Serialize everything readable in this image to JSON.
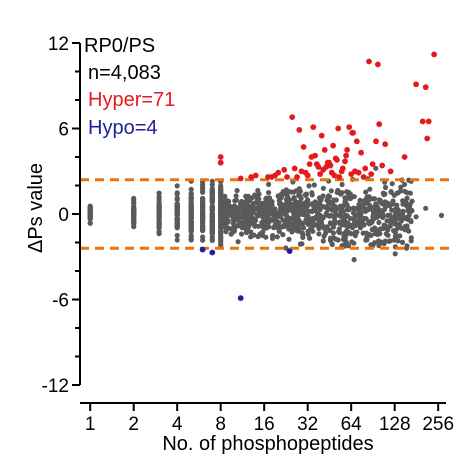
{
  "chart_data": {
    "type": "scatter",
    "title": "RP0/PS",
    "xlabel": "No. of phosphopeptides",
    "ylabel": "ΔPs value",
    "x_scale": "log2",
    "x_ticks": [
      1,
      2,
      4,
      8,
      16,
      32,
      64,
      128,
      256
    ],
    "x_tick_labels": [
      "1",
      "2",
      "4",
      "8",
      "16",
      "32",
      "64",
      "128",
      "256"
    ],
    "y_ticks": [
      -12,
      -6,
      0,
      6,
      12
    ],
    "y_tick_labels": [
      "-12",
      "-6",
      "0",
      "6",
      "12"
    ],
    "xlim": [
      0.85,
      290
    ],
    "ylim": [
      -12,
      12
    ],
    "threshold_lines": [
      2.4,
      -2.4
    ],
    "grid": false,
    "legend_position": "top-left",
    "annotations": [
      {
        "text": "n=4,083",
        "color": "#000000"
      },
      {
        "text": "Hyper=71",
        "color": "#e41a1c"
      },
      {
        "text": "Hypo=4",
        "color": "#1f1f9e"
      }
    ],
    "colors": {
      "background_points": "#5a5a5a",
      "hyper": "#e41a1c",
      "hypo": "#1f1f9e",
      "threshold": "#e8730f"
    },
    "series": [
      {
        "name": "Hyper",
        "x": [
          8,
          8,
          14,
          17,
          18,
          20,
          22,
          25,
          27,
          28,
          30,
          31,
          33,
          35,
          36,
          38,
          40,
          42,
          44,
          46,
          48,
          50,
          52,
          55,
          58,
          60,
          62,
          66,
          70,
          75,
          80,
          85,
          90,
          95,
          100,
          110,
          120,
          150,
          180,
          200,
          210,
          215,
          220,
          240,
          26,
          29,
          32,
          34,
          37,
          39,
          41,
          43,
          45,
          47,
          49,
          51,
          53,
          56,
          59,
          64,
          68,
          72,
          78,
          88,
          65,
          98,
          11,
          13,
          19,
          23,
          105
        ],
        "y": [
          3.6,
          4.0,
          2.7,
          2.6,
          2.6,
          2.9,
          3.1,
          6.8,
          2.6,
          5.9,
          4.7,
          2.9,
          3.5,
          6.1,
          4.1,
          3.3,
          5.5,
          4.5,
          3.6,
          3.4,
          4.8,
          3.9,
          6.0,
          3.0,
          3.7,
          4.5,
          6.1,
          5.7,
          5.1,
          4.3,
          3.2,
          10.7,
          3.5,
          5.1,
          6.3,
          4.9,
          3.0,
          4.0,
          9.1,
          6.5,
          8.9,
          5.3,
          6.5,
          11.2,
          3.2,
          3.0,
          2.7,
          4.0,
          3.5,
          2.8,
          3.1,
          3.3,
          3.6,
          2.9,
          2.7,
          3.8,
          2.6,
          3.2,
          4.1,
          2.8,
          3.0,
          2.9,
          2.6,
          2.8,
          5.7,
          10.5,
          2.5,
          2.6,
          2.7,
          2.6,
          3.4
        ]
      },
      {
        "name": "Hypo",
        "x": [
          6,
          7,
          11,
          24
        ],
        "y": [
          -2.5,
          -2.7,
          -5.9,
          -2.6
        ]
      }
    ]
  }
}
